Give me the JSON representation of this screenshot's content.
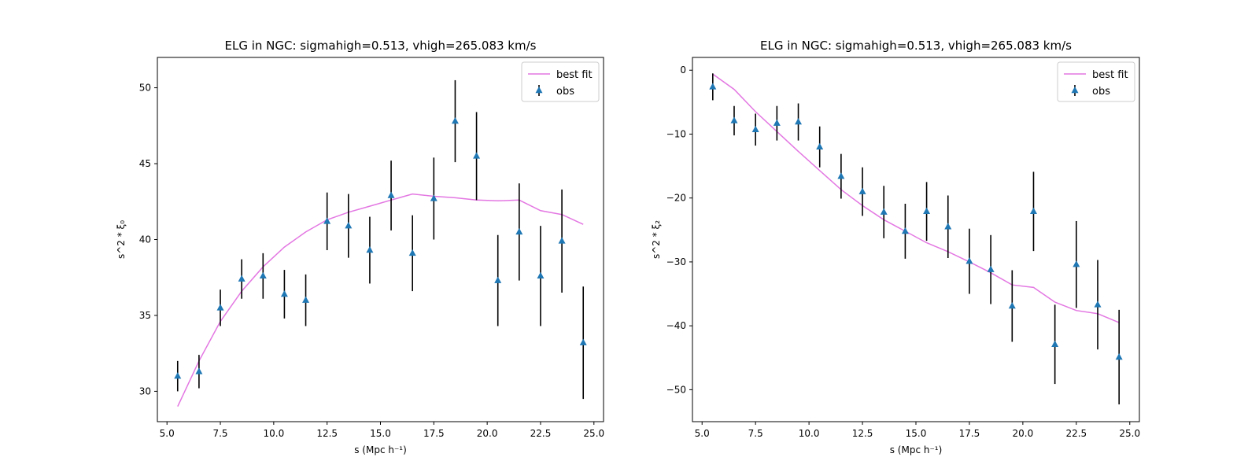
{
  "chart_data": [
    {
      "type": "line",
      "title": "ELG in NGC: sigmahigh=0.513, vhigh=265.083 km/s",
      "xlabel": "s (Mpc h⁻¹)",
      "ylabel": "s^2 * ξ₀",
      "xlim": [
        4.55,
        25.45
      ],
      "ylim": [
        28.0,
        52.0
      ],
      "xticks": [
        5.0,
        7.5,
        10.0,
        12.5,
        15.0,
        17.5,
        20.0,
        22.5,
        25.0
      ],
      "xtick_labels": [
        "5.0",
        "7.5",
        "10.0",
        "12.5",
        "15.0",
        "17.5",
        "20.0",
        "22.5",
        "25.0"
      ],
      "yticks": [
        30,
        35,
        40,
        45,
        50
      ],
      "ytick_labels": [
        "30",
        "35",
        "40",
        "45",
        "50"
      ],
      "grid": false,
      "legend_position": "top-right",
      "legend": [
        "best fit",
        "obs"
      ],
      "series": [
        {
          "name": "best fit",
          "kind": "line",
          "color": "#e377e2",
          "x": [
            5.5,
            6.5,
            7.5,
            8.5,
            9.5,
            10.5,
            11.5,
            12.5,
            13.5,
            14.5,
            15.5,
            16.5,
            17.5,
            18.5,
            19.5,
            20.5,
            21.5,
            22.5,
            23.5,
            24.5
          ],
          "y": [
            29.0,
            32.0,
            34.6,
            36.6,
            38.2,
            39.5,
            40.5,
            41.3,
            41.8,
            42.2,
            42.6,
            43.0,
            42.85,
            42.75,
            42.6,
            42.55,
            42.6,
            41.9,
            41.65,
            41.0
          ]
        },
        {
          "name": "obs",
          "kind": "errorbar",
          "marker": "triangle",
          "color": "#1f77b4",
          "errcolor": "#000000",
          "x": [
            5.5,
            6.5,
            7.5,
            8.5,
            9.5,
            10.5,
            11.5,
            12.5,
            13.5,
            14.5,
            15.5,
            16.5,
            17.5,
            18.5,
            19.5,
            20.5,
            21.5,
            22.5,
            23.5,
            24.5
          ],
          "y": [
            31.0,
            31.3,
            35.5,
            37.4,
            37.6,
            36.4,
            36.0,
            41.2,
            40.9,
            39.3,
            42.9,
            39.1,
            42.7,
            47.8,
            45.5,
            37.3,
            40.5,
            37.6,
            39.9,
            33.2
          ],
          "yerr": [
            1.0,
            1.1,
            1.2,
            1.3,
            1.5,
            1.6,
            1.7,
            1.9,
            2.1,
            2.2,
            2.3,
            2.5,
            2.7,
            2.7,
            2.9,
            3.0,
            3.2,
            3.3,
            3.4,
            3.7
          ]
        }
      ]
    },
    {
      "type": "line",
      "title": "ELG in NGC: sigmahigh=0.513, vhigh=265.083 km/s",
      "xlabel": "s (Mpc h⁻¹)",
      "ylabel": "s^2 * ξ₂",
      "xlim": [
        4.55,
        25.45
      ],
      "ylim": [
        -55.0,
        2.0
      ],
      "xticks": [
        5.0,
        7.5,
        10.0,
        12.5,
        15.0,
        17.5,
        20.0,
        22.5,
        25.0
      ],
      "xtick_labels": [
        "5.0",
        "7.5",
        "10.0",
        "12.5",
        "15.0",
        "17.5",
        "20.0",
        "22.5",
        "25.0"
      ],
      "yticks": [
        0,
        -10,
        -20,
        -30,
        -40,
        -50
      ],
      "ytick_labels": [
        "0",
        "−10",
        "−20",
        "−30",
        "−40",
        "−50"
      ],
      "grid": false,
      "legend_position": "top-right",
      "legend": [
        "best fit",
        "obs"
      ],
      "series": [
        {
          "name": "best fit",
          "kind": "line",
          "color": "#e377e2",
          "x": [
            5.5,
            6.5,
            7.5,
            8.5,
            9.5,
            10.5,
            11.5,
            12.5,
            13.5,
            14.5,
            15.5,
            16.5,
            17.5,
            18.5,
            19.5,
            20.5,
            21.5,
            22.5,
            23.5,
            24.5
          ],
          "y": [
            -0.6,
            -3.0,
            -6.5,
            -9.6,
            -12.7,
            -15.7,
            -18.7,
            -21.2,
            -23.4,
            -25.2,
            -27.0,
            -28.4,
            -30.0,
            -31.7,
            -33.6,
            -34.0,
            -36.3,
            -37.6,
            -38.1,
            -39.5
          ]
        },
        {
          "name": "obs",
          "kind": "errorbar",
          "marker": "triangle",
          "color": "#1f77b4",
          "errcolor": "#000000",
          "x": [
            5.5,
            6.5,
            7.5,
            8.5,
            9.5,
            10.5,
            11.5,
            12.5,
            13.5,
            14.5,
            15.5,
            16.5,
            17.5,
            18.5,
            19.5,
            20.5,
            21.5,
            22.5,
            23.5,
            24.5
          ],
          "y": [
            -2.6,
            -7.9,
            -9.3,
            -8.3,
            -8.1,
            -12.0,
            -16.6,
            -19.0,
            -22.2,
            -25.2,
            -22.1,
            -24.5,
            -29.9,
            -31.2,
            -36.9,
            -22.1,
            -42.9,
            -30.4,
            -36.7,
            -44.9
          ],
          "yerr": [
            2.1,
            2.3,
            2.5,
            2.7,
            2.9,
            3.2,
            3.5,
            3.8,
            4.1,
            4.3,
            4.6,
            4.9,
            5.1,
            5.4,
            5.6,
            6.2,
            6.2,
            6.8,
            7.0,
            7.4
          ]
        }
      ]
    }
  ]
}
